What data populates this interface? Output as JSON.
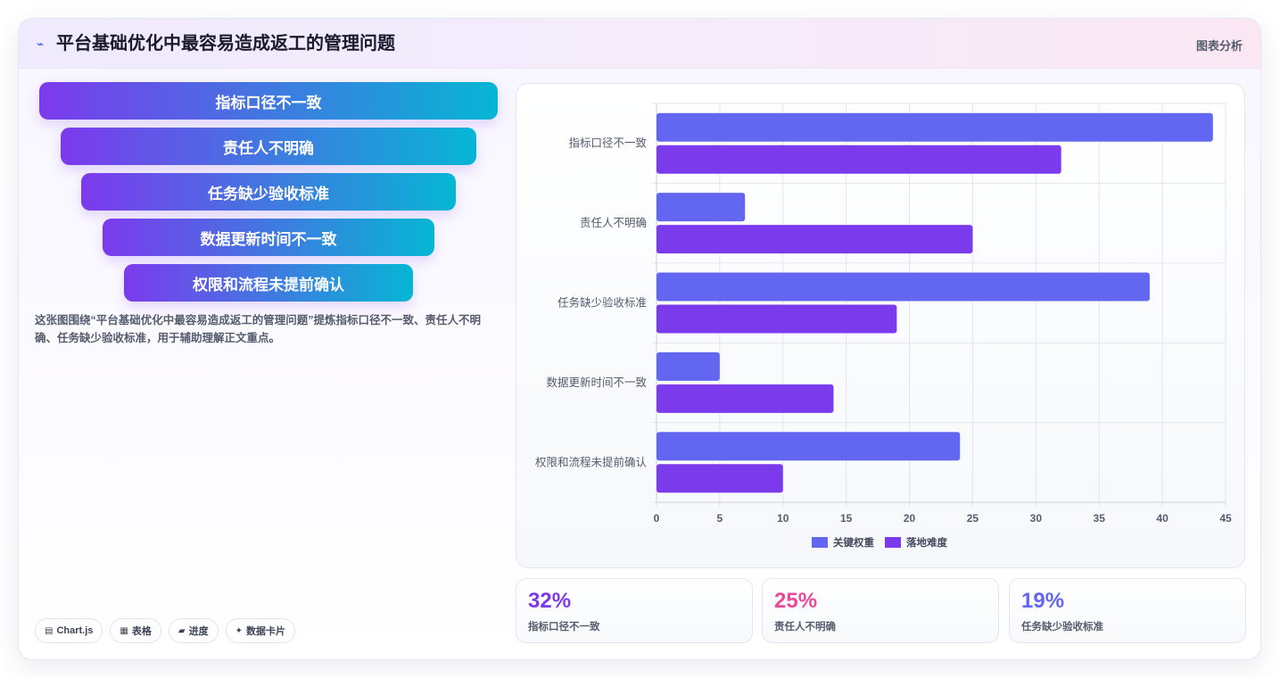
{
  "header": {
    "title": "平台基础优化中最容易造成返工的管理问题",
    "right_label": "图表分析",
    "icon": "trend-icon"
  },
  "funnel": {
    "items": [
      "指标口径不一致",
      "责任人不明确",
      "任务缺少验收标准",
      "数据更新时间不一致",
      "权限和流程未提前确认"
    ]
  },
  "description": "这张图围绕“平台基础优化中最容易造成返工的管理问题”提炼指标口径不一致、责任人不明确、任务缺少验收标准，用于辅助理解正文重点。",
  "chips": [
    {
      "icon": "chart-icon",
      "label": "Chart.js"
    },
    {
      "icon": "table-icon",
      "label": "表格"
    },
    {
      "icon": "progress-icon",
      "label": "进度"
    },
    {
      "icon": "sparkle-icon",
      "label": "数据卡片"
    }
  ],
  "chart_data": {
    "type": "bar",
    "orientation": "horizontal",
    "categories": [
      "指标口径不一致",
      "责任人不明确",
      "任务缺少验收标准",
      "数据更新时间不一致",
      "权限和流程未提前确认"
    ],
    "series": [
      {
        "name": "关键权重",
        "values": [
          44,
          7,
          39,
          5,
          24
        ],
        "color": "#6366f1"
      },
      {
        "name": "落地难度",
        "values": [
          32,
          25,
          19,
          14,
          10
        ],
        "color": "#7c3aed"
      }
    ],
    "xlim": [
      0,
      45
    ],
    "xticks": [
      0,
      5,
      10,
      15,
      20,
      25,
      30,
      35,
      40,
      45
    ],
    "grid": true,
    "legend": "bottom"
  },
  "stats": [
    {
      "value": "32%",
      "label": "指标口径不一致",
      "color": "#7c3aed"
    },
    {
      "value": "25%",
      "label": "责任人不明确",
      "color": "#ec4899"
    },
    {
      "value": "19%",
      "label": "任务缺少验收标准",
      "color": "#6366f1"
    }
  ]
}
